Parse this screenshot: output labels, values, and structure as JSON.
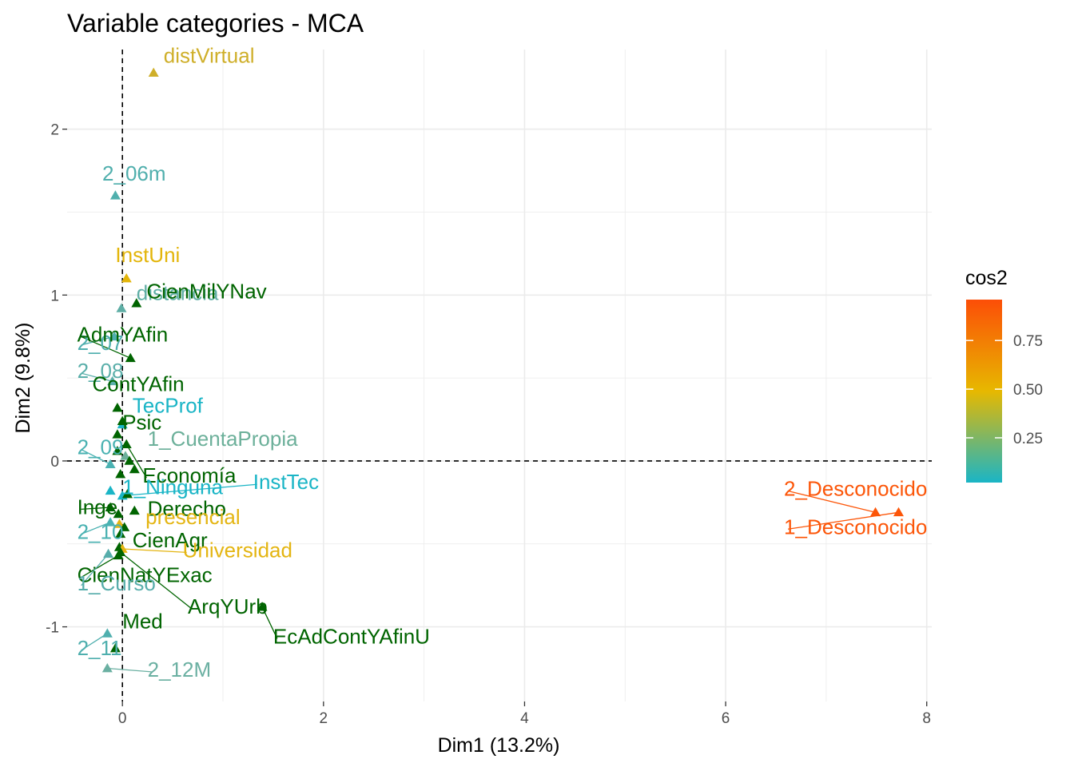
{
  "chart_data": {
    "type": "scatter",
    "title": "Variable categories - MCA",
    "xlabel": "Dim1 (13.2%)",
    "ylabel": "Dim2 (9.8%)",
    "xlim": [
      -0.55,
      8.05
    ],
    "ylim": [
      -1.45,
      2.48
    ],
    "xticks": [
      0,
      2,
      4,
      6,
      8
    ],
    "yticks": [
      -1,
      0,
      1,
      2
    ],
    "grid": true,
    "reference_lines": {
      "x": 0,
      "y": 0,
      "style": "dashed"
    },
    "legend": {
      "title": "cos2",
      "position": "right",
      "ticks": [
        0.25,
        0.5,
        0.75
      ],
      "tick_labels": [
        "0.25",
        "0.50",
        "0.75"
      ],
      "range": [
        0.02,
        0.96
      ],
      "gradient": [
        "#1AB5C6",
        "#E7B800",
        "#FC4E07"
      ]
    },
    "points": [
      {
        "label": "distVirtual",
        "x": 0.31,
        "y": 2.34,
        "color": "#CFAF2A",
        "lx": 0.41,
        "ly": 2.4
      },
      {
        "label": "2_06m",
        "x": -0.07,
        "y": 1.6,
        "color": "#50AFAD",
        "lx": -0.2,
        "ly": 1.69
      },
      {
        "label": "InstUni",
        "x": 0.04,
        "y": 1.1,
        "color": "#E3B50A",
        "lx": -0.07,
        "ly": 1.2
      },
      {
        "label": "distancia",
        "x": -0.01,
        "y": 0.92,
        "color": "#5EAEA5",
        "lx": 0.14,
        "ly": 0.97
      },
      {
        "label": "CienMilYNav",
        "x": 0.14,
        "y": 0.95,
        "color": "#006400",
        "lx": 0.24,
        "ly": 0.98
      },
      {
        "label": "2_07",
        "x": -0.08,
        "y": 0.75,
        "color": "#4FAFAE",
        "lx": -0.45,
        "ly": 0.67
      },
      {
        "label": "AdmYAfin",
        "x": 0.08,
        "y": 0.62,
        "color": "#006400",
        "lx": -0.45,
        "ly": 0.72
      },
      {
        "label": "2_08",
        "x": -0.1,
        "y": 0.48,
        "color": "#5BAFAA",
        "lx": -0.45,
        "ly": 0.5
      },
      {
        "label": "ContYAfin",
        "x": -0.05,
        "y": 0.32,
        "color": "#006400",
        "lx": -0.3,
        "ly": 0.42
      },
      {
        "label": "TecProf",
        "x": 0.0,
        "y": 0.22,
        "color": "#1AB5C6",
        "lx": 0.1,
        "ly": 0.29
      },
      {
        "label": "Psic",
        "x": 0.0,
        "y": 0.24,
        "color": "#006400",
        "lx": 0.0,
        "ly": 0.19
      },
      {
        "label": "1_CuentaPropia",
        "x": 0.03,
        "y": 0.03,
        "color": "#6CB09A",
        "lx": 0.25,
        "ly": 0.09
      },
      {
        "label": "2_09",
        "x": -0.12,
        "y": -0.02,
        "color": "#4AB2B2",
        "lx": -0.45,
        "ly": 0.04
      },
      {
        "label": "Economía",
        "x": 0.04,
        "y": 0.1,
        "color": "#006400",
        "lx": 0.2,
        "ly": -0.13
      },
      {
        "label": "1_Ninguna",
        "x": -0.12,
        "y": -0.18,
        "color": "#1AB5C6",
        "lx": 0.0,
        "ly": -0.2
      },
      {
        "label": "InstTec",
        "x": 0.0,
        "y": -0.21,
        "color": "#1AB5C6",
        "lx": 1.3,
        "ly": -0.17
      },
      {
        "label": "Inge",
        "x": -0.12,
        "y": -0.28,
        "color": "#006400",
        "lx": -0.45,
        "ly": -0.32
      },
      {
        "label": "Derecho",
        "x": 0.12,
        "y": -0.3,
        "color": "#006400",
        "lx": 0.25,
        "ly": -0.33
      },
      {
        "label": "presencial",
        "x": -0.03,
        "y": -0.38,
        "color": "#E4B512",
        "lx": 0.23,
        "ly": -0.38
      },
      {
        "label": "2_10",
        "x": -0.12,
        "y": -0.37,
        "color": "#4AB2B2",
        "lx": -0.45,
        "ly": -0.47
      },
      {
        "label": "CienAgr",
        "x": -0.03,
        "y": -0.52,
        "color": "#006400",
        "lx": 0.1,
        "ly": -0.52
      },
      {
        "label": "Universidad",
        "x": 0.0,
        "y": -0.53,
        "color": "#E4B512",
        "lx": 0.6,
        "ly": -0.58
      },
      {
        "label": "2_Desconocido",
        "x": 7.49,
        "y": -0.31,
        "color": "#FC5609",
        "lx": 6.58,
        "ly": -0.21
      },
      {
        "label": "1_Desconocido",
        "x": 7.72,
        "y": -0.31,
        "color": "#FC5609",
        "lx": 6.58,
        "ly": -0.44
      },
      {
        "label": "CienNatYExac",
        "x": -0.04,
        "y": -0.57,
        "color": "#006400",
        "lx": -0.45,
        "ly": -0.73
      },
      {
        "label": "1_Curso",
        "x": -0.14,
        "y": -0.56,
        "color": "#57ADAB",
        "lx": -0.45,
        "ly": -0.78
      },
      {
        "label": "ArqYUrb",
        "x": -0.02,
        "y": -0.55,
        "color": "#006400",
        "lx": 0.65,
        "ly": -0.92
      },
      {
        "label": "EcAdContYAfinU",
        "x": 1.39,
        "y": -0.88,
        "color": "#006400",
        "lx": 1.5,
        "ly": -1.1
      },
      {
        "label": "Med",
        "x": -0.07,
        "y": -1.13,
        "color": "#006400",
        "lx": -0.0,
        "ly": -1.01
      },
      {
        "label": "2_11",
        "x": -0.15,
        "y": -1.04,
        "color": "#4FAFAE",
        "lx": -0.45,
        "ly": -1.17
      },
      {
        "label": "2_12M",
        "x": -0.15,
        "y": -1.25,
        "color": "#6BB0A2",
        "lx": 0.25,
        "ly": -1.3
      }
    ],
    "extra_points": [
      {
        "x": -0.05,
        "y": 0.16,
        "color": "#006400"
      },
      {
        "x": -0.05,
        "y": 0.06,
        "color": "#006400"
      },
      {
        "x": 0.07,
        "y": 0.0,
        "color": "#006400"
      },
      {
        "x": 0.12,
        "y": -0.05,
        "color": "#006400"
      },
      {
        "x": -0.02,
        "y": -0.08,
        "color": "#006400"
      },
      {
        "x": 0.05,
        "y": -0.2,
        "color": "#006400"
      },
      {
        "x": -0.04,
        "y": -0.32,
        "color": "#006400"
      },
      {
        "x": 0.02,
        "y": -0.4,
        "color": "#006400"
      },
      {
        "x": -0.02,
        "y": -0.44,
        "color": "#006400"
      }
    ]
  }
}
